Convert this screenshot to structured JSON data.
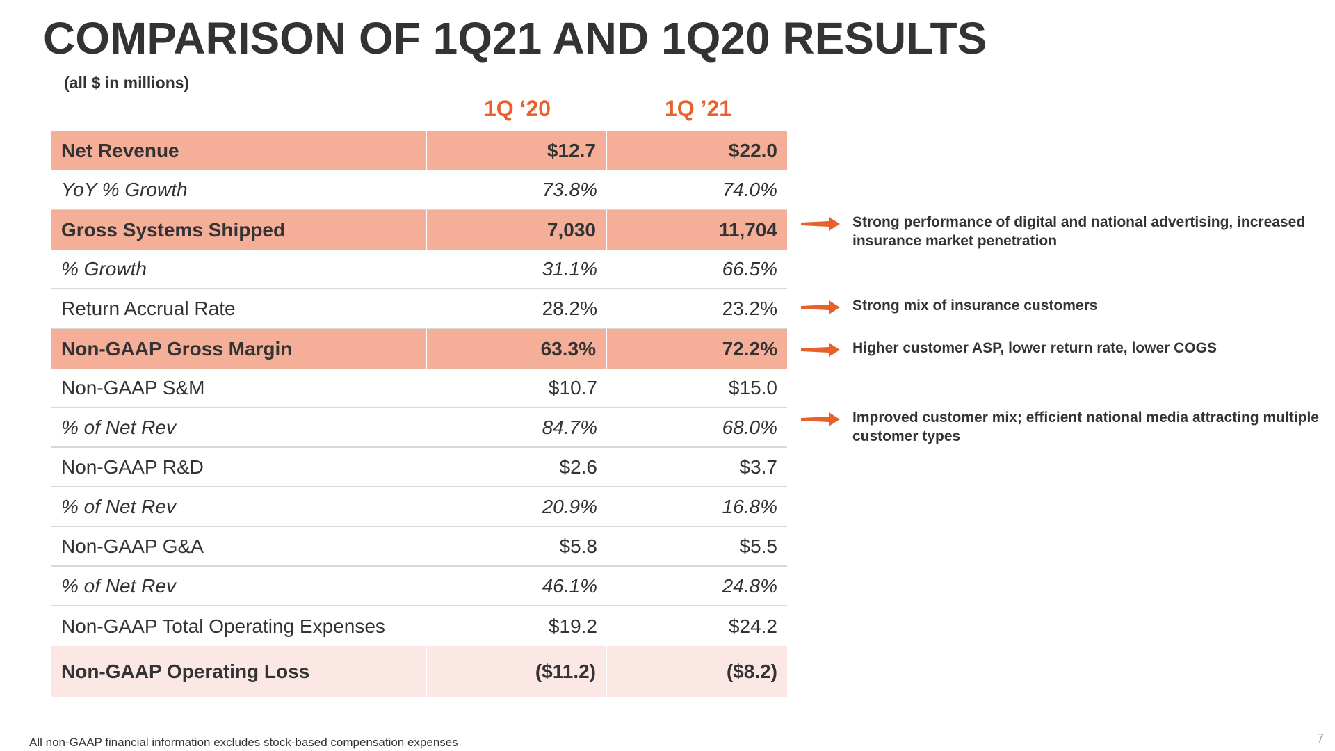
{
  "title": "COMPARISON OF 1Q21 AND 1Q20 RESULTS",
  "subtitle": "(all $ in millions)",
  "columns": [
    "1Q ‘20",
    "1Q ’21"
  ],
  "rows": [
    {
      "label": "Net Revenue",
      "v1": "$12.7",
      "v2": "$22.0"
    },
    {
      "label": "YoY % Growth",
      "v1": "73.8%",
      "v2": "74.0%"
    },
    {
      "label": "Gross Systems Shipped",
      "v1": "7,030",
      "v2": "11,704"
    },
    {
      "label": "% Growth",
      "v1": "31.1%",
      "v2": "66.5%"
    },
    {
      "label": "Return Accrual Rate",
      "v1": "28.2%",
      "v2": "23.2%"
    },
    {
      "label": "Non-GAAP Gross Margin",
      "v1": "63.3%",
      "v2": "72.2%"
    },
    {
      "label": "Non-GAAP S&M",
      "v1": "$10.7",
      "v2": "$15.0"
    },
    {
      "label": "% of Net Rev",
      "v1": "84.7%",
      "v2": "68.0%"
    },
    {
      "label": "Non-GAAP R&D",
      "v1": "$2.6",
      "v2": "$3.7"
    },
    {
      "label": "% of Net Rev",
      "v1": "20.9%",
      "v2": "16.8%"
    },
    {
      "label": "Non-GAAP G&A",
      "v1": "$5.8",
      "v2": "$5.5"
    },
    {
      "label": "% of Net Rev",
      "v1": "46.1%",
      "v2": "24.8%"
    },
    {
      "label": "Non-GAAP Total Operating Expenses",
      "v1": "$19.2",
      "v2": "$24.2"
    },
    {
      "label": "Non-GAAP Operating Loss",
      "v1": "($11.2)",
      "v2": "($8.2)"
    }
  ],
  "notes": [
    "Strong performance of digital and national advertising, increased insurance market penetration",
    "Strong mix of insurance customers",
    "Higher customer ASP,  lower return rate, lower COGS",
    "Improved customer mix; efficient national media attracting multiple customer types"
  ],
  "footnote": "All non-GAAP financial information excludes stock-based compensation expenses",
  "page_number": "7",
  "colors": {
    "accent": "#e8602c",
    "highlight_row": "#f5ae98",
    "loss_row": "#fbe8e4",
    "text": "#333333"
  }
}
